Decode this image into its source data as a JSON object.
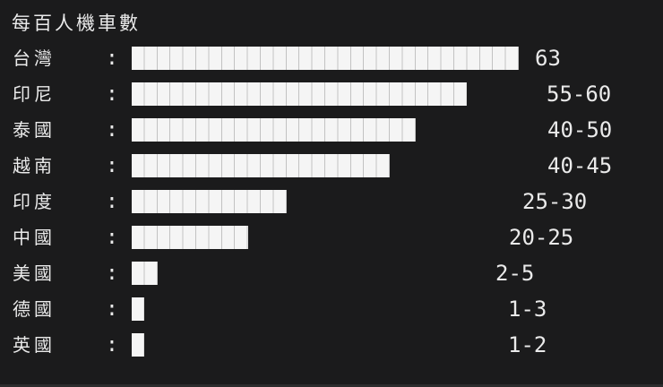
{
  "title": "每百人機車數",
  "separator": ":",
  "colors": {
    "background": "#1b1b1c",
    "bar_fill": "#f5f5f5",
    "bar_divider": "#c2c2c2",
    "text": "#eaeaea",
    "bottom_strip": "#2c2c2d"
  },
  "chart_data": {
    "type": "bar",
    "orientation": "horizontal",
    "title": "每百人機車數",
    "xlim": [
      0,
      63
    ],
    "legend": "none",
    "grid": "off",
    "bar_style": "segmented-blocks, one block ≈ 2.1 units",
    "categories": [
      "台灣",
      "印尼",
      "泰國",
      "越南",
      "印度",
      "中國",
      "美國",
      "德國",
      "英國"
    ],
    "value_labels": [
      "63",
      "55-60",
      "40-50",
      "40-45",
      "25-30",
      "20-25",
      "2-5",
      "1-3",
      "1-2"
    ],
    "value_ranges": [
      [
        63,
        63
      ],
      [
        55,
        60
      ],
      [
        40,
        50
      ],
      [
        40,
        45
      ],
      [
        25,
        30
      ],
      [
        20,
        25
      ],
      [
        2,
        5
      ],
      [
        1,
        3
      ],
      [
        1,
        2
      ]
    ],
    "rows": [
      {
        "label": "台灣",
        "value": "63",
        "range_min": 63,
        "range_max": 63,
        "segments": 30
      },
      {
        "label": "印尼",
        "value": "55-60",
        "range_min": 55,
        "range_max": 60,
        "segments": 26
      },
      {
        "label": "泰國",
        "value": "40-50",
        "range_min": 40,
        "range_max": 50,
        "segments": 22
      },
      {
        "label": "越南",
        "value": "40-45",
        "range_min": 40,
        "range_max": 45,
        "segments": 20
      },
      {
        "label": "印度",
        "value": "25-30",
        "range_min": 25,
        "range_max": 30,
        "segments": 12
      },
      {
        "label": "中國",
        "value": "20-25",
        "range_min": 20,
        "range_max": 25,
        "segments": 9
      },
      {
        "label": "美國",
        "value": "2-5",
        "range_min": 2,
        "range_max": 5,
        "segments": 2
      },
      {
        "label": "德國",
        "value": "1-3",
        "range_min": 1,
        "range_max": 3,
        "segments": 1
      },
      {
        "label": "英國",
        "value": "1-2",
        "range_min": 1,
        "range_max": 2,
        "segments": 1
      }
    ]
  }
}
